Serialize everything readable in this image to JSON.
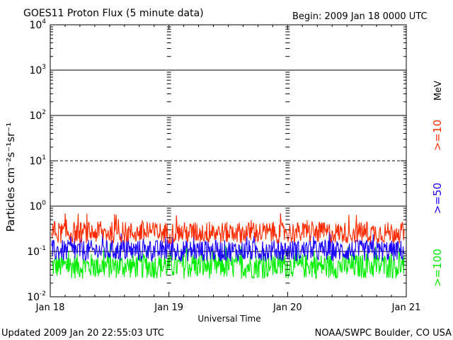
{
  "header": {
    "title": "GOES11 Proton Flux (5 minute data)",
    "begin": "Begin: 2009 Jan 18 0000 UTC"
  },
  "footer": {
    "updated": "Updated 2009 Jan 20 22:55:03 UTC",
    "credit": "NOAA/SWPC Boulder, CO USA"
  },
  "colors": {
    "ge10": "#ff2a00",
    "ge50": "#1a00ff",
    "ge100": "#00ee00",
    "frame": "#000000"
  },
  "chart_data": {
    "type": "line",
    "title": "GOES11 Proton Flux (5 minute data)",
    "xlabel": "Universal Time",
    "ylabel": "Particles cm⁻²s⁻¹sr⁻¹",
    "yscale": "log",
    "ylim": [
      0.01,
      10000
    ],
    "xlim": [
      "2009-01-18",
      "2009-01-21"
    ],
    "x_tick_labels": [
      "Jan 18",
      "Jan 19",
      "Jan 20",
      "Jan 21"
    ],
    "y_tick_labels": [
      {
        "base": "10",
        "exp": "-2"
      },
      {
        "base": "10",
        "exp": "-1"
      },
      {
        "base": "10",
        "exp": "0"
      },
      {
        "base": "10",
        "exp": "1"
      },
      {
        "base": "10",
        "exp": "2"
      },
      {
        "base": "10",
        "exp": "3"
      },
      {
        "base": "10",
        "exp": "4"
      }
    ],
    "unit_label": "MeV",
    "grid": "horizontal lines at each decade, dashed at 10^1",
    "legend": "right side, vertical labels",
    "series": [
      {
        "name": ">=10",
        "color": "#ff2a00",
        "typical_range": [
          0.15,
          0.45
        ]
      },
      {
        "name": ">=50",
        "color": "#1a00ff",
        "typical_range": [
          0.06,
          0.18
        ]
      },
      {
        "name": ">=100",
        "color": "#00ee00",
        "typical_range": [
          0.025,
          0.09
        ]
      }
    ]
  }
}
